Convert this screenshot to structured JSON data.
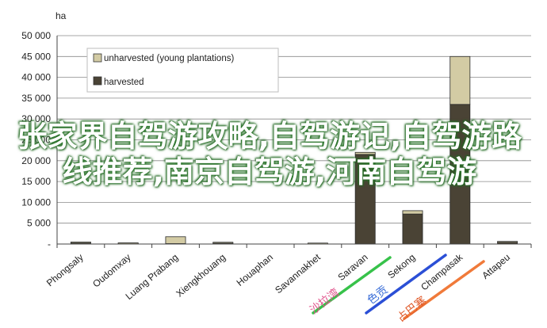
{
  "chart_data": {
    "type": "bar",
    "stacked": true,
    "unit_label": "ha",
    "categories": [
      "Phongsaly",
      "Oudomxay",
      "Luang Prabang",
      "Xiengkhouang",
      "Houaphan",
      "Savannakhet",
      "Saravan",
      "Sekong",
      "Champasak",
      "Attapeu"
    ],
    "series": [
      {
        "name": "harvested",
        "color": "#4a4335",
        "values": [
          250,
          50,
          100,
          200,
          0,
          0,
          21500,
          7200,
          33500,
          400
        ]
      },
      {
        "name": "unharvested (young plantations)",
        "color": "#d3cba4",
        "values": [
          150,
          50,
          1650,
          100,
          0,
          50,
          500,
          800,
          11500,
          100
        ]
      }
    ],
    "ylim": [
      0,
      50000
    ],
    "yticks": [
      "-",
      "5 000",
      "10 000",
      "15 000",
      "20 000",
      "25 000",
      "30 000",
      "35 000",
      "40 000",
      "45 000",
      "50 000"
    ],
    "grid": true,
    "legend_position": "top-left"
  },
  "overlay": {
    "watermark": "张家界自驾游攻略,自驾游记,自驾游路线推荐,南京自驾游,河南自驾游",
    "stamps": [
      {
        "text": "沙拉湾",
        "color": "#e0508a"
      },
      {
        "text": "色贡",
        "color": "#3c6fd8"
      },
      {
        "text": "占巴塞",
        "color": "#e05a2a"
      }
    ]
  }
}
